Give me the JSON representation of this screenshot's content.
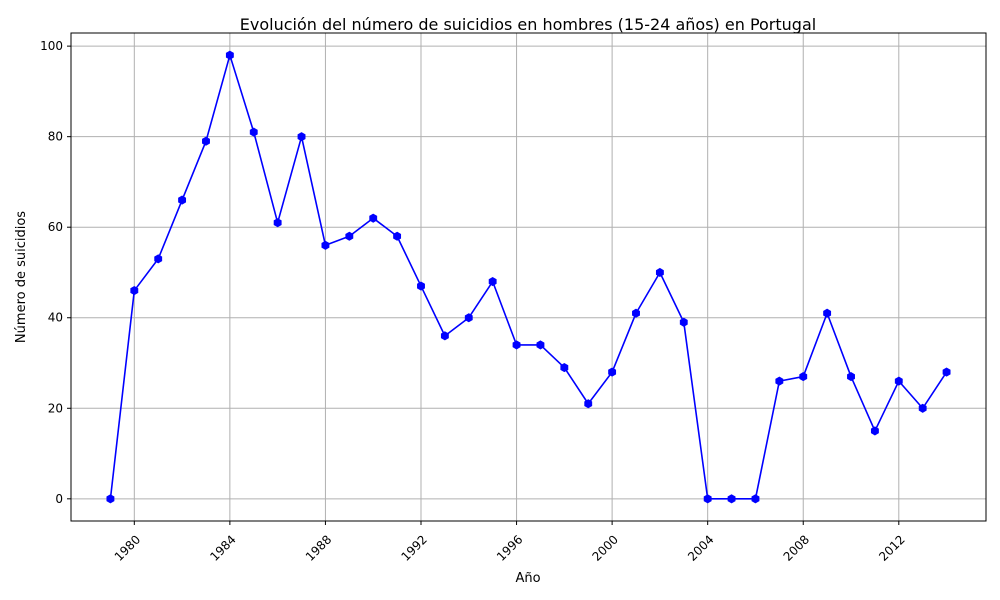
{
  "chart_data": {
    "type": "line",
    "title": "Evolución del número de suicidios en hombres (15-24 años) en Portugal",
    "xlabel": "Año",
    "ylabel": "Número de suicidios",
    "xlim": [
      1977.35,
      1915.65
    ],
    "ylim": [
      -4.9,
      102.9
    ],
    "x_ticks": [
      1980,
      1984,
      1988,
      1992,
      1996,
      2000,
      2004,
      2008,
      2012
    ],
    "y_ticks": [
      0,
      20,
      40,
      60,
      80,
      100
    ],
    "grid": true,
    "line_color": "#0000ff",
    "marker": "hexagon",
    "series": [
      {
        "x": [
          1979,
          1980,
          1981,
          1982,
          1983,
          1984,
          1985,
          1986,
          1987,
          1988,
          1989,
          1990,
          1991,
          1992,
          1993,
          1994,
          1995,
          1996,
          1997,
          1998,
          1999,
          2000,
          2001,
          2002,
          2003,
          2004,
          2005,
          2006,
          2007,
          2008,
          2009,
          2010,
          2011,
          2012,
          2013,
          2014
        ],
        "values": [
          0,
          46,
          53,
          66,
          79,
          98,
          81,
          61,
          80,
          56,
          58,
          62,
          58,
          47,
          36,
          40,
          48,
          34,
          34,
          29,
          21,
          28,
          41,
          50,
          39,
          0,
          0,
          0,
          26,
          27,
          41,
          27,
          15,
          26,
          20,
          28
        ]
      }
    ]
  }
}
